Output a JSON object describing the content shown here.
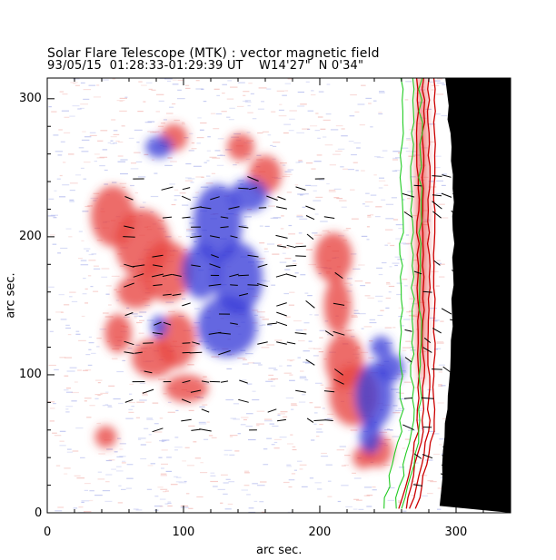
{
  "figure": {
    "title": "Solar Flare Telescope (MTK) : vector magnetic field",
    "subtitle": "93/05/15  01:28:33-01:29:39 UT    W14'27\"  N 0'34\""
  },
  "chart_data": {
    "type": "heatmap",
    "description_units": "arc sec.",
    "xlabel": "arc sec.",
    "ylabel": "arc sec.",
    "xlim": [
      0,
      340
    ],
    "ylim": [
      0,
      315
    ],
    "xticks": [
      "0",
      "100",
      "200",
      "300"
    ],
    "yticks": [
      "0",
      "100",
      "200",
      "300"
    ],
    "colors": {
      "positive_polarity": "#e8443f",
      "negative_polarity": "#3a3ed8",
      "limb_contour": "#22cc22",
      "limb_outline": "#cc0000",
      "off_disk": "#000000",
      "vectors": "#000000"
    },
    "limb_x_approx": 290
  }
}
